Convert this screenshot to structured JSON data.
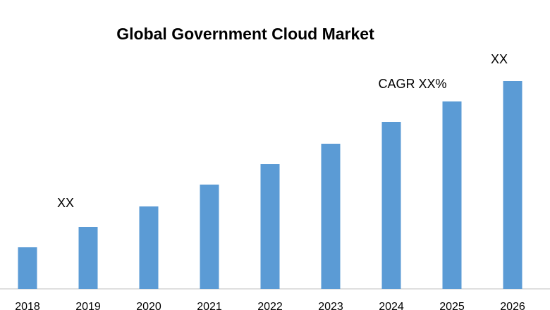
{
  "chart_data": {
    "type": "bar",
    "title": "Global Government Cloud Market",
    "categories": [
      "2018",
      "2019",
      "2020",
      "2021",
      "2022",
      "2023",
      "2024",
      "2025",
      "2026"
    ],
    "values": [
      59,
      88,
      117,
      148,
      177,
      206,
      237,
      266,
      295
    ],
    "color": "#5b9bd5",
    "annotations": [
      "XX",
      "CAGR XX%",
      "XX"
    ]
  }
}
